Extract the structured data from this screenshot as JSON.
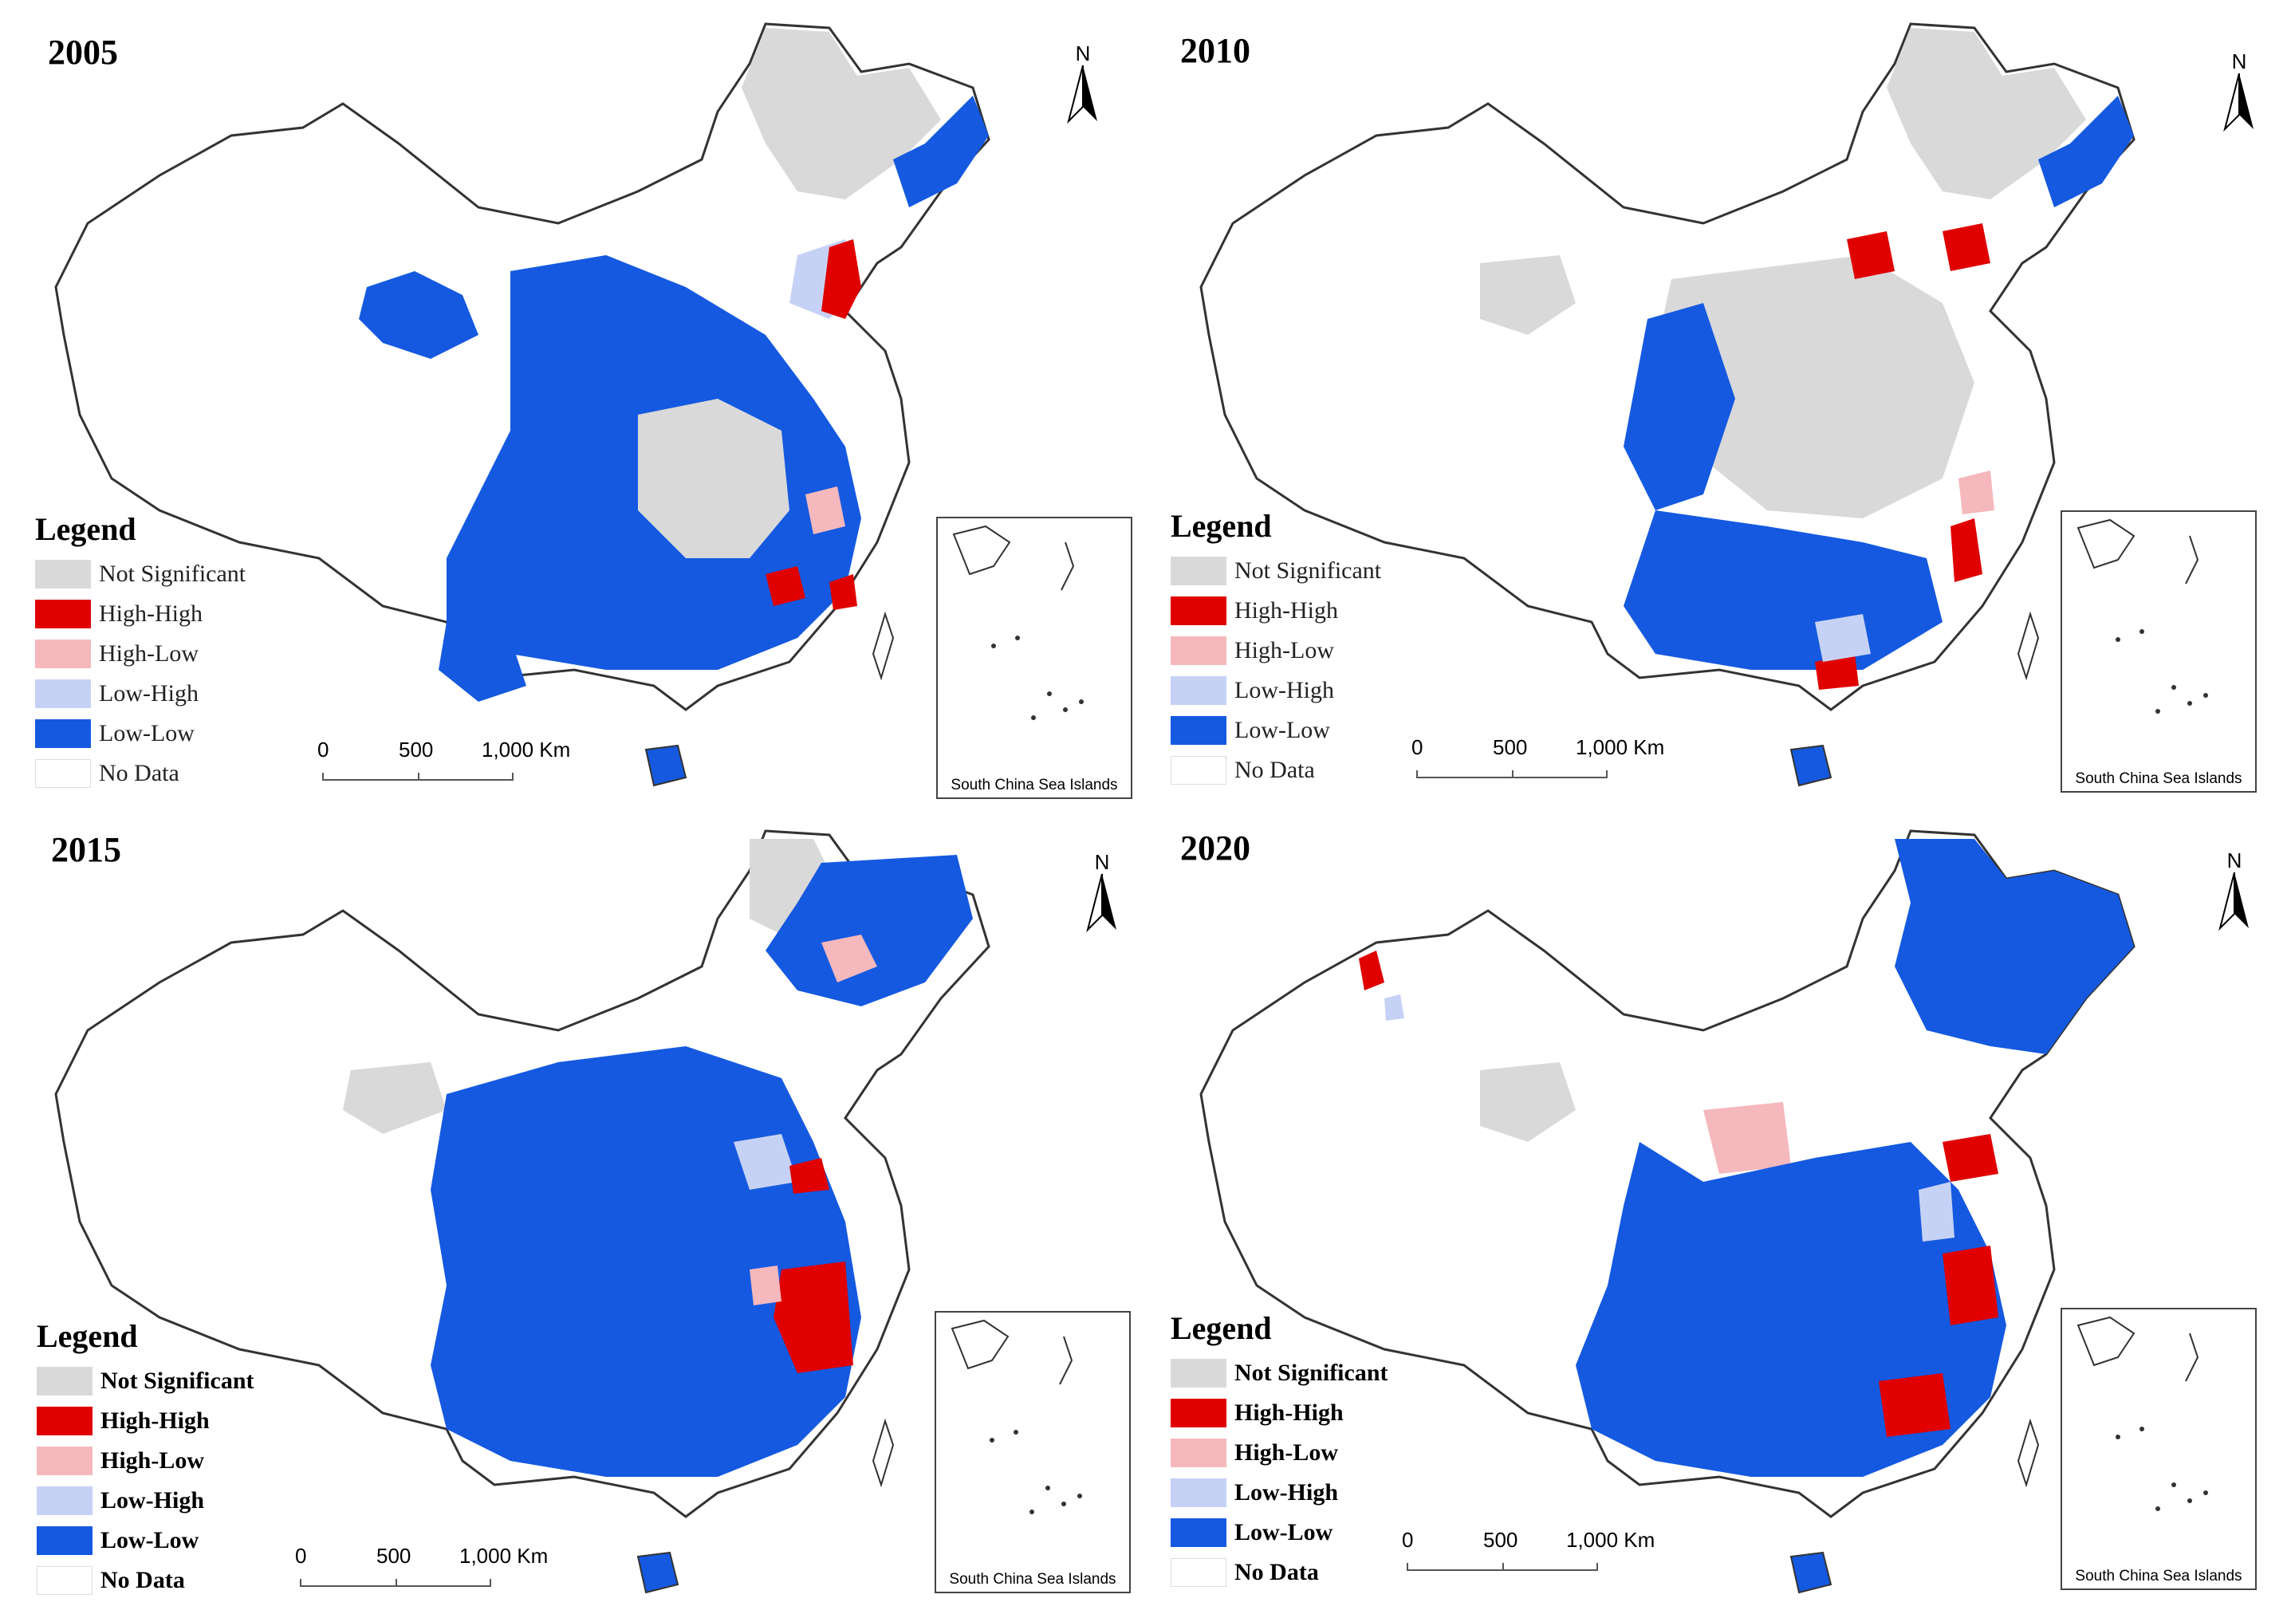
{
  "colors": {
    "not_significant": "#d9d9d9",
    "high_high": "#e00000",
    "high_low": "#f5b8bc",
    "low_high": "#c6d2f5",
    "low_low": "#1559e0",
    "no_data": "#ffffff"
  },
  "panels": [
    {
      "year": "2005",
      "legend": {
        "title": "Legend",
        "items": [
          {
            "label": "Not Significant",
            "category": "not_significant"
          },
          {
            "label": "High-High",
            "category": "high_high"
          },
          {
            "label": "High-Low",
            "category": "high_low"
          },
          {
            "label": "Low-High",
            "category": "low_high"
          },
          {
            "label": "Low-Low",
            "category": "low_low"
          },
          {
            "label": "No Data",
            "category": "no_data"
          }
        ]
      },
      "scale": {
        "ticks": [
          "0",
          "500",
          "1,000 Km"
        ]
      },
      "north_label": "N",
      "inset_label": "South China Sea Islands"
    },
    {
      "year": "2010",
      "legend": {
        "title": "Legend",
        "items": [
          {
            "label": "Not Significant",
            "category": "not_significant"
          },
          {
            "label": "High-High",
            "category": "high_high"
          },
          {
            "label": "High-Low",
            "category": "high_low"
          },
          {
            "label": "Low-High",
            "category": "low_high"
          },
          {
            "label": "Low-Low",
            "category": "low_low"
          },
          {
            "label": "No Data",
            "category": "no_data"
          }
        ]
      },
      "scale": {
        "ticks": [
          "0",
          "500",
          "1,000 Km"
        ]
      },
      "north_label": "N",
      "inset_label": "South China Sea Islands"
    },
    {
      "year": "2015",
      "legend": {
        "title": "Legend",
        "items": [
          {
            "label": "Not Significant",
            "category": "not_significant"
          },
          {
            "label": "High-High",
            "category": "high_high"
          },
          {
            "label": "High-Low",
            "category": "high_low"
          },
          {
            "label": "Low-High",
            "category": "low_high"
          },
          {
            "label": "Low-Low",
            "category": "low_low"
          },
          {
            "label": "No Data",
            "category": "no_data"
          }
        ]
      },
      "scale": {
        "ticks": [
          "0",
          "500",
          "1,000 Km"
        ]
      },
      "north_label": "N",
      "inset_label": "South China Sea Islands"
    },
    {
      "year": "2020",
      "legend": {
        "title": "Legend",
        "items": [
          {
            "label": "Not Significant",
            "category": "not_significant"
          },
          {
            "label": "High-High",
            "category": "high_high"
          },
          {
            "label": "High-Low",
            "category": "high_low"
          },
          {
            "label": "Low-High",
            "category": "low_high"
          },
          {
            "label": "Low-Low",
            "category": "low_low"
          },
          {
            "label": "No Data",
            "category": "no_data"
          }
        ]
      },
      "scale": {
        "ticks": [
          "0",
          "500",
          "1,000 Km"
        ]
      },
      "north_label": "N",
      "inset_label": "South China Sea Islands"
    }
  ]
}
